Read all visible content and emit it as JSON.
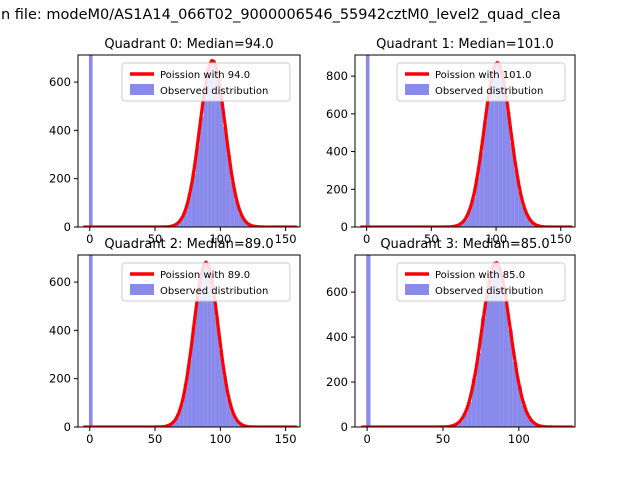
{
  "figure": {
    "title": "n file: modeM0/AS1A14_066T02_9000006546_55942cztM0_level2_quad_clea"
  },
  "colors": {
    "hist": "#6b6de6",
    "hist_opacity": 0.8,
    "curve": "#ff0000",
    "axes": "#000000",
    "legend_border": "#cccccc"
  },
  "chart_data": [
    {
      "type": "histogram+line",
      "title": "Quadrant 0: Median=94.0",
      "median": 94.0,
      "legend": [
        "Poission with 94.0",
        "Observed distribution"
      ],
      "legend_position": "upper right",
      "grid": false,
      "xlim": [
        -9,
        161
      ],
      "ylim": [
        0,
        712
      ],
      "xticks": [
        0,
        50,
        100,
        150
      ],
      "yticks": [
        0,
        200,
        400,
        600
      ],
      "spike": {
        "x0": -0.6,
        "x1": 2.2,
        "full_height": true
      },
      "bins": {
        "start": 60,
        "width": 3,
        "heights": [
          3,
          8,
          15,
          38,
          72,
          138,
          220,
          340,
          455,
          585,
          655,
          685,
          630,
          550,
          415,
          300,
          188,
          112,
          55,
          29,
          13,
          6,
          3,
          1
        ]
      },
      "curve": {
        "mu": 94,
        "sigma": 9.7,
        "peak": 690
      }
    },
    {
      "type": "histogram+line",
      "title": "Quadrant 1: Median=101.0",
      "median": 101.0,
      "legend": [
        "Poission with 101.0",
        "Observed distribution"
      ],
      "legend_position": "upper right",
      "grid": false,
      "xlim": [
        -9,
        161
      ],
      "ylim": [
        0,
        912
      ],
      "xticks": [
        0,
        50,
        100,
        150
      ],
      "yticks": [
        0,
        200,
        400,
        600,
        800
      ],
      "spike": {
        "x0": -0.6,
        "x1": 2.2,
        "full_height": true
      },
      "bins": {
        "start": 66,
        "width": 3,
        "heights": [
          3,
          9,
          21,
          42,
          88,
          155,
          265,
          395,
          560,
          700,
          825,
          868,
          845,
          740,
          610,
          445,
          305,
          186,
          108,
          57,
          25,
          11,
          4
        ]
      },
      "curve": {
        "mu": 101,
        "sigma": 10.1,
        "peak": 872
      }
    },
    {
      "type": "histogram+line",
      "title": "Quadrant 2: Median=89.0",
      "median": 89.0,
      "legend": [
        "Poission with 89.0",
        "Observed distribution"
      ],
      "legend_position": "upper right",
      "grid": false,
      "xlim": [
        -9,
        161
      ],
      "ylim": [
        0,
        712
      ],
      "xticks": [
        0,
        50,
        100,
        150
      ],
      "yticks": [
        0,
        200,
        400,
        600
      ],
      "spike": {
        "x0": -0.6,
        "x1": 2.2,
        "full_height": true
      },
      "bins": {
        "start": 57,
        "width": 3,
        "heights": [
          4,
          10,
          22,
          52,
          95,
          180,
          278,
          415,
          530,
          640,
          678,
          658,
          568,
          455,
          318,
          210,
          118,
          64,
          28,
          14,
          5,
          2,
          1
        ]
      },
      "curve": {
        "mu": 89,
        "sigma": 9.4,
        "peak": 682
      }
    },
    {
      "type": "histogram+line",
      "title": "Quadrant 3: Median=85.0",
      "median": 85.0,
      "legend": [
        "Poission with 85.0",
        "Observed distribution"
      ],
      "legend_position": "upper right",
      "grid": false,
      "xlim": [
        -8,
        137
      ],
      "ylim": [
        0,
        765
      ],
      "xticks": [
        0,
        50,
        100
      ],
      "yticks": [
        0,
        200,
        400,
        600
      ],
      "spike": {
        "x0": -0.6,
        "x1": 2.2,
        "full_height": true
      },
      "bins": {
        "start": 54,
        "width": 3,
        "heights": [
          5,
          12,
          26,
          62,
          112,
          215,
          330,
          485,
          605,
          715,
          728,
          682,
          560,
          432,
          288,
          182,
          98,
          48,
          22,
          9,
          3,
          1
        ]
      },
      "curve": {
        "mu": 85,
        "sigma": 9.2,
        "peak": 732
      }
    }
  ]
}
